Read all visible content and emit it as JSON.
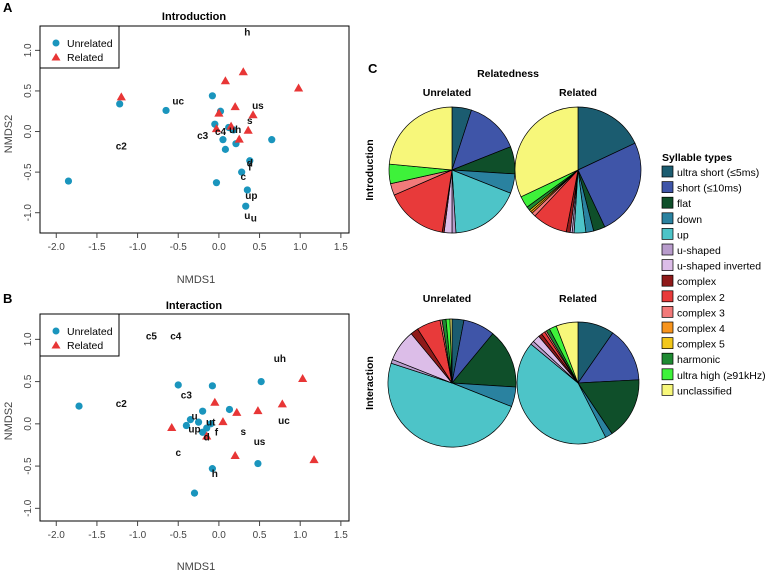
{
  "panel_labels": {
    "a": "A",
    "b": "B",
    "c": "C"
  },
  "legend_unrelated": "Unrelated",
  "legend_related": "Related",
  "colors": {
    "unrelated": "#1a95bd",
    "related": "#e83636",
    "axis": "#444444",
    "frame": "#000000"
  },
  "chart_data": [
    {
      "id": "A",
      "type": "scatter",
      "title": "Introduction",
      "xlabel": "NMDS1",
      "ylabel": "NMDS2",
      "xlim": [
        -2.2,
        1.6
      ],
      "ylim": [
        -1.25,
        1.3
      ],
      "xticks": [
        -2.0,
        -1.5,
        -1.0,
        -0.5,
        0.0,
        0.5,
        1.0,
        1.5
      ],
      "xtick_labels": [
        "-2.0",
        "-1.5",
        "-1.0",
        "-0.5",
        "0.0",
        "0.5",
        "1.0",
        "1.5"
      ],
      "yticks": [
        -1.0,
        -0.5,
        0.0,
        0.5,
        1.0
      ],
      "ytick_labels": [
        "-1.0",
        "-0.5",
        "0.0",
        "0.5",
        "1.0"
      ],
      "series": [
        {
          "name": "Unrelated",
          "points": [
            [
              -1.85,
              -0.61
            ],
            [
              -1.22,
              0.34
            ],
            [
              -0.65,
              0.26
            ],
            [
              -0.08,
              0.44
            ],
            [
              -0.05,
              0.09
            ],
            [
              0.02,
              0.25
            ],
            [
              0.05,
              -0.1
            ],
            [
              0.08,
              -0.22
            ],
            [
              0.12,
              0.05
            ],
            [
              0.18,
              0.02
            ],
            [
              0.21,
              -0.15
            ],
            [
              0.28,
              -0.5
            ],
            [
              0.35,
              -0.72
            ],
            [
              0.38,
              -0.36
            ],
            [
              0.33,
              -0.92
            ],
            [
              0.65,
              -0.1
            ],
            [
              -0.03,
              -0.63
            ]
          ]
        },
        {
          "name": "Related",
          "points": [
            [
              -1.2,
              0.42
            ],
            [
              0.0,
              0.22
            ],
            [
              0.08,
              0.62
            ],
            [
              0.3,
              0.73
            ],
            [
              0.98,
              0.53
            ],
            [
              0.2,
              0.3
            ],
            [
              0.42,
              0.2
            ],
            [
              -0.03,
              0.03
            ],
            [
              0.15,
              0.06
            ],
            [
              0.25,
              -0.1
            ],
            [
              0.36,
              0.01
            ]
          ]
        }
      ],
      "annotations": [
        {
          "text": "h",
          "x": 0.35,
          "y": 1.18
        },
        {
          "text": "uc",
          "x": -0.5,
          "y": 0.33
        },
        {
          "text": "us",
          "x": 0.48,
          "y": 0.28
        },
        {
          "text": "c2",
          "x": -1.2,
          "y": -0.22
        },
        {
          "text": "s",
          "x": 0.38,
          "y": 0.09
        },
        {
          "text": "c3",
          "x": -0.2,
          "y": -0.09
        },
        {
          "text": "c4",
          "x": 0.02,
          "y": -0.04
        },
        {
          "text": "uh",
          "x": 0.2,
          "y": -0.02
        },
        {
          "text": "d",
          "x": 0.38,
          "y": -0.43
        },
        {
          "text": "f",
          "x": 0.38,
          "y": -0.48
        },
        {
          "text": "c",
          "x": 0.3,
          "y": -0.6
        },
        {
          "text": "up",
          "x": 0.4,
          "y": -0.83
        },
        {
          "text": "u",
          "x": 0.35,
          "y": -1.08
        },
        {
          "text": "u",
          "x": 0.43,
          "y": -1.11
        }
      ]
    },
    {
      "id": "B",
      "type": "scatter",
      "title": "Interaction",
      "xlabel": "NMDS1",
      "ylabel": "NMDS2",
      "xlim": [
        -2.2,
        1.6
      ],
      "ylim": [
        -1.15,
        1.3
      ],
      "xticks": [
        -2.0,
        -1.5,
        -1.0,
        -0.5,
        0.0,
        0.5,
        1.0,
        1.5
      ],
      "xtick_labels": [
        "-2.0",
        "-1.5",
        "-1.0",
        "-0.5",
        "0.0",
        "0.5",
        "1.0",
        "1.5"
      ],
      "yticks": [
        -1.0,
        -0.5,
        0.0,
        0.5,
        1.0
      ],
      "ytick_labels": [
        "-1.0",
        "-0.5",
        "0.0",
        "0.5",
        "1.0"
      ],
      "series": [
        {
          "name": "Unrelated",
          "points": [
            [
              -1.72,
              0.21
            ],
            [
              -0.5,
              0.46
            ],
            [
              -0.08,
              0.45
            ],
            [
              0.52,
              0.5
            ],
            [
              -0.4,
              -0.02
            ],
            [
              -0.35,
              0.05
            ],
            [
              -0.2,
              0.15
            ],
            [
              -0.15,
              -0.05
            ],
            [
              -0.2,
              -0.1
            ],
            [
              -0.1,
              0.0
            ],
            [
              0.13,
              0.17
            ],
            [
              0.48,
              -0.47
            ],
            [
              -0.08,
              -0.53
            ],
            [
              -0.3,
              -0.82
            ],
            [
              -0.25,
              0.02
            ]
          ]
        },
        {
          "name": "Related",
          "points": [
            [
              -0.58,
              -0.05
            ],
            [
              -0.05,
              0.25
            ],
            [
              0.22,
              0.13
            ],
            [
              0.48,
              0.15
            ],
            [
              0.78,
              0.23
            ],
            [
              1.03,
              0.53
            ],
            [
              1.17,
              -0.43
            ],
            [
              0.2,
              -0.38
            ],
            [
              0.05,
              0.02
            ],
            [
              -0.15,
              -0.15
            ]
          ]
        }
      ],
      "annotations": [
        {
          "text": "c5",
          "x": -0.83,
          "y": 1.0
        },
        {
          "text": "c4",
          "x": -0.53,
          "y": 1.0
        },
        {
          "text": "uh",
          "x": 0.75,
          "y": 0.73
        },
        {
          "text": "c2",
          "x": -1.2,
          "y": 0.2
        },
        {
          "text": "c3",
          "x": -0.4,
          "y": 0.3
        },
        {
          "text": "u",
          "x": -0.3,
          "y": 0.05
        },
        {
          "text": "ut",
          "x": -0.1,
          "y": -0.02
        },
        {
          "text": "up",
          "x": -0.3,
          "y": -0.1
        },
        {
          "text": "f",
          "x": -0.03,
          "y": -0.14
        },
        {
          "text": "d",
          "x": -0.15,
          "y": -0.2
        },
        {
          "text": "uc",
          "x": 0.8,
          "y": 0.0
        },
        {
          "text": "s",
          "x": 0.3,
          "y": -0.13
        },
        {
          "text": "us",
          "x": 0.5,
          "y": -0.25
        },
        {
          "text": "c",
          "x": -0.5,
          "y": -0.38
        },
        {
          "text": "h",
          "x": -0.05,
          "y": -0.63
        }
      ]
    },
    {
      "id": "C",
      "type": "pie",
      "title": "Relatedness",
      "column_labels": [
        "Unrelated",
        "Related"
      ],
      "row_labels": [
        "Introduction",
        "Interaction"
      ],
      "legend_title": "Syllable types",
      "categories": [
        "ultra short (≤5ms)",
        "short (≤10ms)",
        "flat",
        "down",
        "up",
        "u-shaped",
        "u-shaped inverted",
        "complex",
        "complex 2",
        "complex 3",
        "complex 4",
        "complex 5",
        "harmonic",
        "ultra high (≥91kHz)",
        "unclassified"
      ],
      "category_colors": [
        "#1b5c70",
        "#3f55a8",
        "#0f4f2a",
        "#2a82a0",
        "#4dc4c8",
        "#b89ccc",
        "#dcbde8",
        "#8f1a1a",
        "#e83a3a",
        "#f27a7a",
        "#f7941d",
        "#f2c71a",
        "#1e8a32",
        "#3ef23a",
        "#f7f77a"
      ],
      "pies": [
        {
          "row": "Introduction",
          "column": "Unrelated",
          "values": [
            5,
            14,
            7,
            5,
            18,
            1,
            2,
            0.5,
            16,
            3,
            0,
            0,
            0,
            5,
            23.5
          ]
        },
        {
          "row": "Introduction",
          "column": "Related",
          "values": [
            18,
            25,
            3,
            2,
            3,
            0.5,
            0.5,
            1,
            9,
            1,
            0.5,
            0.5,
            1,
            3,
            32
          ]
        },
        {
          "row": "Interaction",
          "column": "Unrelated",
          "values": [
            3,
            8,
            15,
            5,
            49,
            1,
            8,
            2,
            6,
            0.5,
            0,
            0,
            1,
            1,
            0.5
          ]
        },
        {
          "row": "Interaction",
          "column": "Related",
          "values": [
            10,
            15,
            17,
            2,
            45,
            1,
            2,
            1,
            1,
            0.5,
            0,
            0,
            1,
            2,
            6
          ]
        }
      ]
    }
  ]
}
